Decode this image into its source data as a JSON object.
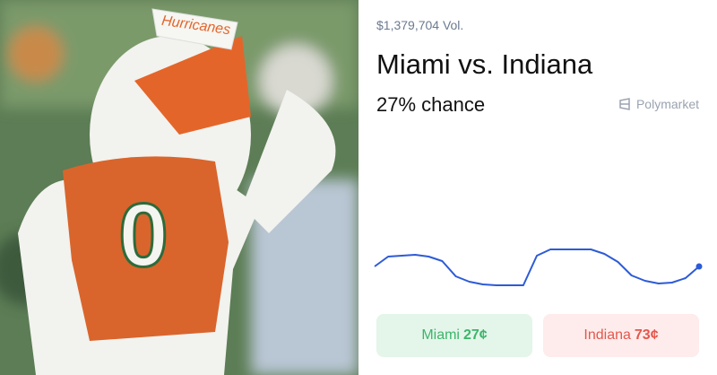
{
  "photo": {
    "hat_text": "Hurricanes",
    "jersey_number": "0"
  },
  "volume": "$1,379,704 Vol.",
  "title": "Miami vs. Indiana",
  "chance": "27% chance",
  "brand": "Polymarket",
  "chart": {
    "type": "line",
    "color": "#2d5bd7",
    "values": [
      27,
      29.75,
      30,
      30.25,
      29.75,
      28.5,
      24.25,
      22.75,
      22,
      21.75,
      21.75,
      21.75,
      30,
      31.75,
      31.75,
      31.75,
      31.75,
      30.5,
      28.25,
      24.5,
      23,
      22.25,
      22.5,
      23.75,
      27
    ]
  },
  "buttons": [
    {
      "label": "Miami",
      "price": "27¢"
    },
    {
      "label": "Indiana",
      "price": "73¢"
    }
  ]
}
